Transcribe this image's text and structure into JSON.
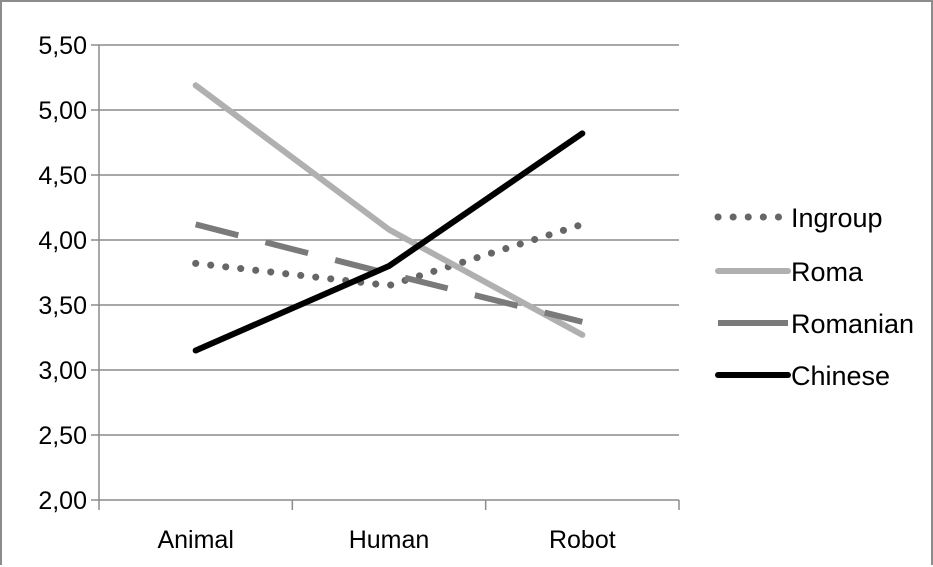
{
  "chart_data": {
    "type": "line",
    "title": "",
    "xlabel": "",
    "ylabel": "",
    "categories": [
      "Animal",
      "Human",
      "Robot"
    ],
    "ylim": [
      2.0,
      5.5
    ],
    "yticks": [
      "2,00",
      "2,50",
      "3,00",
      "3,50",
      "4,00",
      "4,50",
      "5,00",
      "5,50"
    ],
    "ytick_values": [
      2.0,
      2.5,
      3.0,
      3.5,
      4.0,
      4.5,
      5.0,
      5.5
    ],
    "grid": true,
    "legend_position": "right",
    "series": [
      {
        "name": "Ingroup",
        "values": [
          3.82,
          3.65,
          4.12
        ],
        "color": "#666666",
        "style": "dotted"
      },
      {
        "name": "Roma",
        "values": [
          5.19,
          4.08,
          3.27
        ],
        "color": "#b0b0b0",
        "style": "solid"
      },
      {
        "name": "Romanian",
        "values": [
          4.12,
          3.74,
          3.37
        ],
        "color": "#7a7a7a",
        "style": "dashed"
      },
      {
        "name": "Chinese",
        "values": [
          3.15,
          3.8,
          4.82
        ],
        "color": "#000000",
        "style": "solid"
      }
    ]
  }
}
